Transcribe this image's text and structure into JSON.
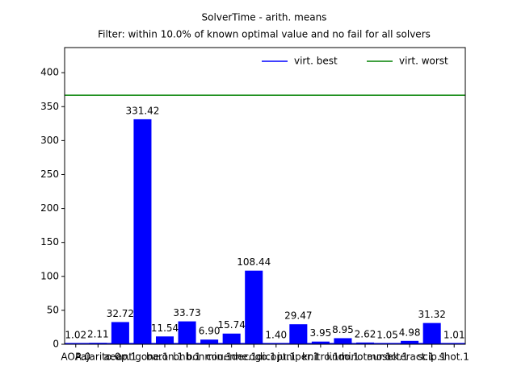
{
  "chart_data": {
    "type": "bar",
    "title": "SolverTime - arith. means",
    "subtitle": "Filter: within 10.0% of known optimal value and no fail for all solvers",
    "categories": [
      "AOA.0",
      "Pajarito.0",
      "aecp.1",
      "antigone.1",
      "baron.1",
      "bnb.1",
      "bonmin.1",
      "couenne.1",
      "decogo.1",
      "dicopt.1",
      "juniper.1",
      "knitro.1",
      "lindo.1",
      "minotaur.1",
      "mosek.1",
      "octeract.1",
      "scip.1",
      "shot.1"
    ],
    "values": [
      1.02,
      2.11,
      32.72,
      331.42,
      11.54,
      33.73,
      6.9,
      15.74,
      108.44,
      1.4,
      29.47,
      3.95,
      8.95,
      2.62,
      1.05,
      4.98,
      31.32,
      1.01
    ],
    "value_labels": [
      "1.02",
      "2.11",
      "32.72",
      "331.42",
      "11.54",
      "33.73",
      "6.90",
      "15.74",
      "108.44",
      "1.40",
      "29.47",
      "3.95",
      "8.95",
      "2.62",
      "1.05",
      "4.98",
      "31.32",
      "1.01"
    ],
    "color": "#0000ff",
    "reference_lines": [
      {
        "name": "virt. best",
        "color": "#0000ff",
        "value": 1.0
      },
      {
        "name": "virt. worst",
        "color": "#008000",
        "value": 366.8
      }
    ],
    "legend": "upper right",
    "ylim": [
      0,
      437
    ],
    "yticks": [
      0,
      50,
      100,
      150,
      200,
      250,
      300,
      350,
      400
    ]
  }
}
